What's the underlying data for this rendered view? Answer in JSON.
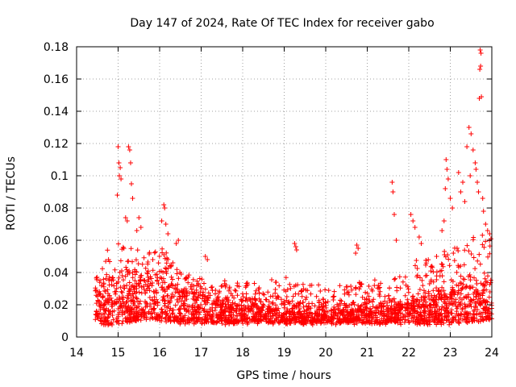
{
  "chart_data": {
    "type": "scatter",
    "title": "Day 147 of 2024, Rate Of TEC Index for receiver gabo",
    "xlabel": "GPS time / hours",
    "ylabel": "ROTI / TECUs",
    "xlim": [
      14,
      24
    ],
    "ylim": [
      0,
      0.18
    ],
    "x_ticks": [
      "14",
      "15",
      "16",
      "17",
      "18",
      "19",
      "20",
      "21",
      "22",
      "23",
      "24"
    ],
    "y_ticks": [
      "0",
      "0.02",
      "0.04",
      "0.06",
      "0.08",
      "0.1",
      "0.12",
      "0.14",
      "0.16",
      "0.18"
    ],
    "grid": true,
    "marker": "+",
    "color": "#ff0000",
    "series": [
      {
        "name": "ROTI",
        "envelope": {
          "x": [
            14.45,
            14.7,
            15.0,
            15.3,
            15.6,
            16.0,
            16.3,
            16.6,
            17.0,
            17.5,
            18.0,
            18.5,
            19.0,
            19.5,
            20.0,
            20.5,
            21.0,
            21.5,
            22.0,
            22.5,
            23.0,
            23.5,
            24.0
          ],
          "base": [
            0.008,
            0.008,
            0.009,
            0.01,
            0.01,
            0.011,
            0.01,
            0.009,
            0.009,
            0.009,
            0.009,
            0.009,
            0.009,
            0.009,
            0.009,
            0.009,
            0.009,
            0.009,
            0.009,
            0.009,
            0.009,
            0.01,
            0.011
          ],
          "typ_high": [
            0.03,
            0.034,
            0.036,
            0.038,
            0.038,
            0.04,
            0.036,
            0.03,
            0.026,
            0.023,
            0.022,
            0.02,
            0.022,
            0.021,
            0.02,
            0.02,
            0.02,
            0.021,
            0.023,
            0.027,
            0.03,
            0.032,
            0.034
          ],
          "peak_high": [
            0.04,
            0.052,
            0.058,
            0.06,
            0.055,
            0.06,
            0.05,
            0.04,
            0.036,
            0.034,
            0.034,
            0.034,
            0.036,
            0.034,
            0.033,
            0.033,
            0.034,
            0.04,
            0.045,
            0.048,
            0.055,
            0.065,
            0.065
          ]
        },
        "outliers": [
          [
            15.0,
            0.118
          ],
          [
            15.02,
            0.108
          ],
          [
            15.05,
            0.105
          ],
          [
            15.03,
            0.1
          ],
          [
            14.98,
            0.088
          ],
          [
            15.07,
            0.098
          ],
          [
            15.25,
            0.118
          ],
          [
            15.28,
            0.116
          ],
          [
            15.3,
            0.108
          ],
          [
            15.32,
            0.095
          ],
          [
            15.35,
            0.086
          ],
          [
            15.22,
            0.072
          ],
          [
            15.18,
            0.074
          ],
          [
            15.5,
            0.074
          ],
          [
            15.45,
            0.066
          ],
          [
            15.55,
            0.068
          ],
          [
            16.1,
            0.082
          ],
          [
            16.12,
            0.08
          ],
          [
            16.05,
            0.072
          ],
          [
            16.15,
            0.07
          ],
          [
            16.2,
            0.064
          ],
          [
            16.4,
            0.058
          ],
          [
            16.45,
            0.06
          ],
          [
            17.1,
            0.05
          ],
          [
            17.15,
            0.048
          ],
          [
            19.25,
            0.058
          ],
          [
            19.28,
            0.056
          ],
          [
            19.3,
            0.054
          ],
          [
            20.75,
            0.057
          ],
          [
            20.78,
            0.055
          ],
          [
            20.72,
            0.052
          ],
          [
            21.6,
            0.096
          ],
          [
            21.62,
            0.09
          ],
          [
            21.65,
            0.076
          ],
          [
            21.7,
            0.06
          ],
          [
            22.05,
            0.076
          ],
          [
            22.1,
            0.072
          ],
          [
            22.15,
            0.068
          ],
          [
            22.25,
            0.062
          ],
          [
            22.3,
            0.058
          ],
          [
            22.9,
            0.11
          ],
          [
            22.92,
            0.104
          ],
          [
            22.95,
            0.098
          ],
          [
            22.88,
            0.092
          ],
          [
            23.0,
            0.086
          ],
          [
            23.05,
            0.08
          ],
          [
            22.85,
            0.072
          ],
          [
            22.8,
            0.066
          ],
          [
            23.2,
            0.102
          ],
          [
            23.25,
            0.09
          ],
          [
            23.3,
            0.096
          ],
          [
            23.35,
            0.084
          ],
          [
            23.45,
            0.13
          ],
          [
            23.5,
            0.126
          ],
          [
            23.4,
            0.118
          ],
          [
            23.55,
            0.116
          ],
          [
            23.6,
            0.108
          ],
          [
            23.62,
            0.104
          ],
          [
            23.48,
            0.1
          ],
          [
            23.65,
            0.096
          ],
          [
            23.68,
            0.09
          ],
          [
            23.72,
            0.178
          ],
          [
            23.74,
            0.176
          ],
          [
            23.73,
            0.168
          ],
          [
            23.71,
            0.166
          ],
          [
            23.75,
            0.149
          ],
          [
            23.7,
            0.148
          ],
          [
            23.78,
            0.086
          ],
          [
            23.8,
            0.078
          ],
          [
            23.85,
            0.07
          ],
          [
            23.9,
            0.066
          ],
          [
            23.95,
            0.064
          ]
        ]
      }
    ]
  }
}
